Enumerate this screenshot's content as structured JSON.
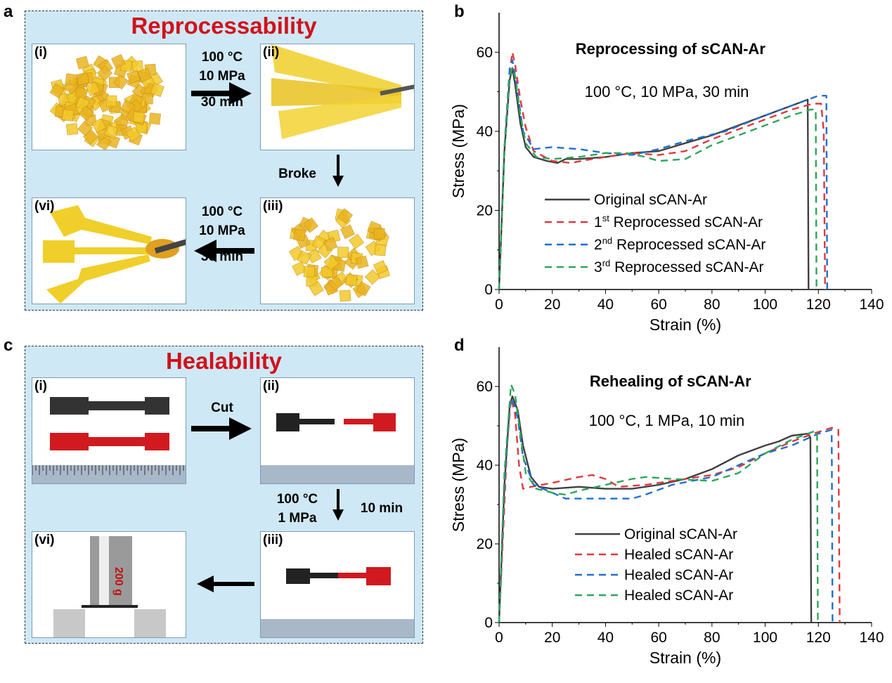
{
  "panels": {
    "a": {
      "letter": "a",
      "title": "Reprocessability",
      "photos": [
        "(i)",
        "(ii)",
        "(iii)",
        "(vi)"
      ],
      "step1": [
        "100 °C",
        "10 MPa",
        "30 min"
      ],
      "step2": "Broke",
      "step3": [
        "100 °C",
        "10 MPa",
        "30 min"
      ]
    },
    "b": {
      "letter": "b"
    },
    "c": {
      "letter": "c",
      "title": "Healability",
      "photos": [
        "(i)",
        "(ii)",
        "(iii)",
        "(vi)"
      ],
      "step1": "Cut",
      "step2": [
        "100 °C",
        "1 MPa"
      ],
      "step2_time": "10 min",
      "weight_label": "200 g"
    },
    "d": {
      "letter": "d"
    }
  },
  "colors": {
    "box_bg": "#cfe8f5",
    "title_red": "#d0121b",
    "original": "#404040",
    "red": "#e0393e",
    "blue": "#1f6fd1",
    "green": "#2ea55a"
  },
  "chart_data": [
    {
      "type": "line",
      "title": "Reprocessing of sCAN-Ar",
      "annotation": "100 °C, 10 MPa, 30 min",
      "xlabel": "Strain (%)",
      "ylabel": "Stress (MPa)",
      "xlim": [
        0,
        140
      ],
      "ylim": [
        0,
        70
      ],
      "xticks": [
        0,
        20,
        40,
        60,
        80,
        100,
        120,
        140
      ],
      "yticks": [
        0,
        20,
        40,
        60
      ],
      "grid": false,
      "legend_placement": "center",
      "series": [
        {
          "name": "Original sCAN-Ar",
          "label_main": "Original sCAN-Ar",
          "color": "#404040",
          "dash": "solid",
          "points": [
            [
              0,
              0
            ],
            [
              2,
              35
            ],
            [
              4,
              53
            ],
            [
              5,
              56
            ],
            [
              6,
              52
            ],
            [
              8,
              42
            ],
            [
              10,
              36
            ],
            [
              13,
              33.5
            ],
            [
              18,
              32.5
            ],
            [
              22,
              32
            ],
            [
              25,
              33
            ],
            [
              30,
              33
            ],
            [
              40,
              33.5
            ],
            [
              50,
              34.5
            ],
            [
              60,
              35
            ],
            [
              70,
              37
            ],
            [
              80,
              39
            ],
            [
              90,
              41.5
            ],
            [
              100,
              44
            ],
            [
              110,
              46.5
            ],
            [
              116,
              48
            ],
            [
              116.3,
              0
            ]
          ]
        },
        {
          "name": "1st Reprocessed sCAN-Ar",
          "label_num": "1",
          "label_sup": "st",
          "label_main": " Reprocessed sCAN-Ar",
          "color": "#e0393e",
          "dash": "dashed",
          "points": [
            [
              0,
              0
            ],
            [
              2,
              35
            ],
            [
              4,
              55
            ],
            [
              5,
              60
            ],
            [
              6,
              57
            ],
            [
              8,
              48
            ],
            [
              10,
              41
            ],
            [
              13,
              35
            ],
            [
              20,
              32.5
            ],
            [
              27,
              32
            ],
            [
              35,
              33
            ],
            [
              50,
              34.5
            ],
            [
              60,
              34
            ],
            [
              65,
              34.5
            ],
            [
              70,
              35
            ],
            [
              80,
              38
            ],
            [
              90,
              40.5
            ],
            [
              100,
              43
            ],
            [
              110,
              45.5
            ],
            [
              118,
              47
            ],
            [
              121,
              47
            ],
            [
              122,
              40
            ],
            [
              122.5,
              0
            ]
          ]
        },
        {
          "name": "2nd Reprocessed sCAN-Ar",
          "label_num": "2",
          "label_sup": "nd",
          "label_main": " Reprocessed sCAN-Ar",
          "color": "#1f6fd1",
          "dash": "dashed",
          "points": [
            [
              0,
              0
            ],
            [
              2,
              36
            ],
            [
              4,
              56
            ],
            [
              5,
              58
            ],
            [
              6.5,
              52
            ],
            [
              9,
              40
            ],
            [
              13,
              35.5
            ],
            [
              20,
              36
            ],
            [
              30,
              35.5
            ],
            [
              40,
              34.5
            ],
            [
              50,
              34
            ],
            [
              60,
              35.5
            ],
            [
              70,
              37.5
            ],
            [
              85,
              40
            ],
            [
              100,
              44
            ],
            [
              110,
              46.5
            ],
            [
              116,
              48
            ],
            [
              120,
              49
            ],
            [
              123,
              49
            ],
            [
              123.3,
              0
            ]
          ]
        },
        {
          "name": "3rd Reprocessed sCAN-Ar",
          "label_num": "3",
          "label_sup": "rd",
          "label_main": " Reprocessed sCAN-Ar",
          "color": "#2ea55a",
          "dash": "dashed",
          "points": [
            [
              0,
              0
            ],
            [
              2,
              35
            ],
            [
              4,
              54
            ],
            [
              5,
              56
            ],
            [
              6,
              54
            ],
            [
              8,
              44
            ],
            [
              10,
              37
            ],
            [
              14,
              33.5
            ],
            [
              20,
              33
            ],
            [
              30,
              33.5
            ],
            [
              40,
              34.5
            ],
            [
              48,
              34.5
            ],
            [
              55,
              33.5
            ],
            [
              60,
              32.5
            ],
            [
              70,
              33
            ],
            [
              80,
              36.5
            ],
            [
              90,
              39
            ],
            [
              100,
              41.5
            ],
            [
              110,
              44
            ],
            [
              117,
              45.5
            ],
            [
              119,
              45.5
            ],
            [
              119.3,
              0
            ]
          ]
        }
      ]
    },
    {
      "type": "line",
      "title": "Rehealing of sCAN-Ar",
      "annotation": "100 °C, 1 MPa, 10 min",
      "xlabel": "Strain (%)",
      "ylabel": "Stress (MPa)",
      "xlim": [
        0,
        140
      ],
      "ylim": [
        0,
        70
      ],
      "xticks": [
        0,
        20,
        40,
        60,
        80,
        100,
        120,
        140
      ],
      "yticks": [
        0,
        20,
        40,
        60
      ],
      "grid": false,
      "legend_placement": "center",
      "series": [
        {
          "name": "Original sCAN-Ar",
          "label_main": "Original sCAN-Ar",
          "color": "#404040",
          "dash": "solid",
          "points": [
            [
              0,
              0
            ],
            [
              2,
              35
            ],
            [
              4,
              55
            ],
            [
              5,
              57.5
            ],
            [
              7,
              54
            ],
            [
              9,
              45
            ],
            [
              12,
              37
            ],
            [
              15,
              34.5
            ],
            [
              20,
              34
            ],
            [
              30,
              34.5
            ],
            [
              40,
              34
            ],
            [
              50,
              34
            ],
            [
              60,
              35
            ],
            [
              70,
              36.5
            ],
            [
              80,
              39
            ],
            [
              90,
              42.5
            ],
            [
              100,
              45
            ],
            [
              105,
              46
            ],
            [
              110,
              47.5
            ],
            [
              116,
              48
            ],
            [
              117,
              47
            ],
            [
              117.3,
              0
            ]
          ]
        },
        {
          "name": "Healed sCAN-Ar",
          "label_main": "Healed sCAN-Ar",
          "color": "#e0393e",
          "dash": "dashed",
          "points": [
            [
              0,
              0
            ],
            [
              3,
              45
            ],
            [
              4.5,
              57
            ],
            [
              6,
              53
            ],
            [
              7.5,
              40
            ],
            [
              9,
              34
            ],
            [
              12,
              34.5
            ],
            [
              20,
              35.5
            ],
            [
              30,
              37
            ],
            [
              35,
              37.5
            ],
            [
              40,
              36.5
            ],
            [
              45,
              34.5
            ],
            [
              55,
              35
            ],
            [
              65,
              36
            ],
            [
              80,
              37.5
            ],
            [
              90,
              39.5
            ],
            [
              100,
              43
            ],
            [
              110,
              46
            ],
            [
              118,
              48
            ],
            [
              125,
              49.5
            ],
            [
              127.5,
              49
            ],
            [
              128,
              0
            ]
          ]
        },
        {
          "name": "Healed sCAN-Ar",
          "label_main": "Healed sCAN-Ar",
          "color": "#1f6fd1",
          "dash": "dashed",
          "points": [
            [
              0,
              0
            ],
            [
              2,
              35
            ],
            [
              4,
              55
            ],
            [
              5,
              57
            ],
            [
              7,
              52
            ],
            [
              9,
              42
            ],
            [
              13,
              35
            ],
            [
              20,
              33
            ],
            [
              25,
              31.5
            ],
            [
              35,
              31.5
            ],
            [
              50,
              31.5
            ],
            [
              55,
              32.5
            ],
            [
              65,
              35
            ],
            [
              80,
              37
            ],
            [
              90,
              40
            ],
            [
              100,
              43
            ],
            [
              110,
              45
            ],
            [
              120,
              48
            ],
            [
              125,
              49
            ],
            [
              125.3,
              0
            ]
          ]
        },
        {
          "name": "Healed sCAN-Ar",
          "label_main": "Healed sCAN-Ar",
          "color": "#2ea55a",
          "dash": "dashed",
          "points": [
            [
              0,
              0
            ],
            [
              2,
              38
            ],
            [
              4.5,
              60.5
            ],
            [
              6,
              58
            ],
            [
              8,
              48
            ],
            [
              10,
              38
            ],
            [
              14,
              34
            ],
            [
              20,
              33
            ],
            [
              25,
              32.5
            ],
            [
              30,
              33.5
            ],
            [
              40,
              35
            ],
            [
              50,
              36.5
            ],
            [
              55,
              37
            ],
            [
              65,
              36.5
            ],
            [
              80,
              36
            ],
            [
              90,
              38
            ],
            [
              100,
              43
            ],
            [
              110,
              46.5
            ],
            [
              118,
              48.5
            ],
            [
              119.5,
              48.5
            ],
            [
              119.8,
              0
            ]
          ]
        }
      ]
    }
  ]
}
